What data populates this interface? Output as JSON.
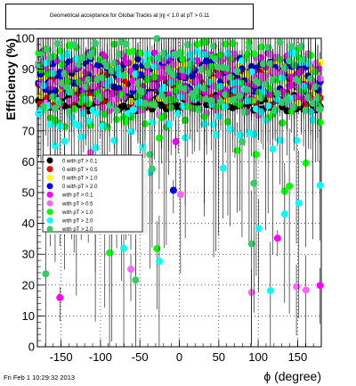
{
  "title": "Geometrical acceptance for Global Tracks at |η| < 1.0 at pT > 0.11",
  "footer": "Fri Feb  1 10:29:32 2013",
  "chart_data": {
    "type": "scatter",
    "xlabel": "ϕ (degree)",
    "ylabel": "Efficiency (%)",
    "xlim": [
      -180,
      180
    ],
    "ylim": [
      0,
      100
    ],
    "x_ticks": [
      -150,
      -100,
      -50,
      0,
      50,
      100,
      150
    ],
    "y_ticks": [
      0,
      10,
      20,
      30,
      40,
      50,
      60,
      70,
      80,
      90,
      100
    ],
    "grid": true,
    "legend_position": "left",
    "series": [
      {
        "name": "0 with pT > 0.1",
        "color": "#000000",
        "base": 79,
        "spread": 2.5,
        "drops": 0.0,
        "err": 2.2
      },
      {
        "name": "0 with pT > 0.5",
        "color": "#ff0000",
        "base": 84,
        "spread": 6,
        "drops": 0.0,
        "err": 3.5
      },
      {
        "name": "0 with pT > 1.0",
        "color": "#ffff00",
        "base": 86,
        "spread": 7,
        "drops": 0.0,
        "err": 4.0
      },
      {
        "name": "0 with pT > 2.0",
        "color": "#0000ff",
        "base": 88,
        "spread": 6,
        "drops": 0.02,
        "err": 4.5
      },
      {
        "name": "with pT > 0.1",
        "color": "#ff00ff",
        "base": 88,
        "spread": 8,
        "drops": 0.03,
        "err": 6.0
      },
      {
        "name": "with pT > 0.5",
        "color": "#ff66ff",
        "base": 85,
        "spread": 10,
        "drops": 0.05,
        "err": 10
      },
      {
        "name": "with pT > 1.0",
        "color": "#00ff00",
        "base": 85,
        "spread": 14,
        "drops": 0.09,
        "err": 14
      },
      {
        "name": "with pT > 2.0",
        "color": "#00ffff",
        "base": 80,
        "spread": 16,
        "drops": 0.1,
        "err": 14
      },
      {
        "name": "with pT > 2.0",
        "color": "#33cc66",
        "base": 88,
        "spread": 12,
        "drops": 0.08,
        "err": 14
      }
    ]
  }
}
